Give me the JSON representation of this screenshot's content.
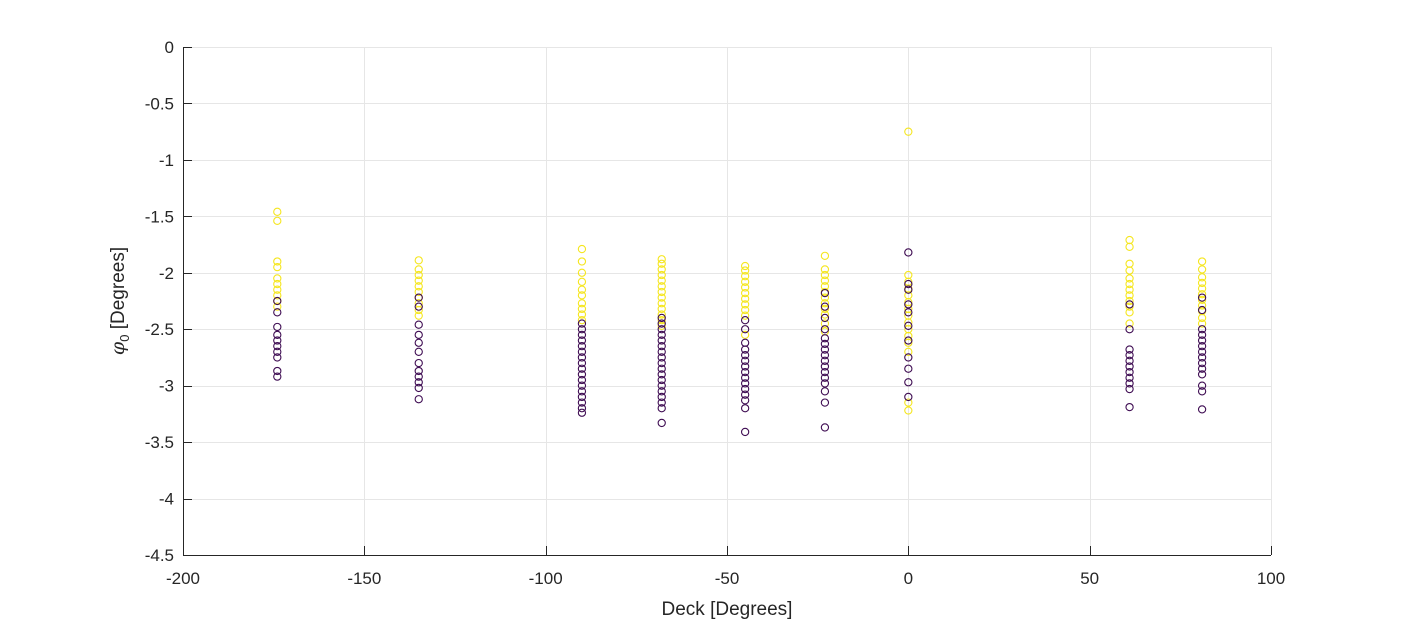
{
  "chart_data": {
    "type": "scatter",
    "xlabel": "Deck [Degrees]",
    "ylabel_symbol": "φ",
    "ylabel_subscript": "0",
    "ylabel_rest": " [Degrees]",
    "xlim": [
      -200,
      100
    ],
    "ylim": [
      -4.5,
      0
    ],
    "xticks": [
      -200,
      -150,
      -100,
      -50,
      0,
      50,
      100
    ],
    "yticks": [
      0,
      -0.5,
      -1,
      -1.5,
      -2,
      -2.5,
      -3,
      -3.5,
      -4,
      -4.5
    ],
    "grid": true,
    "colors": {
      "yellow": "#f5e61f",
      "purple": "#3f0d53"
    },
    "series": [
      {
        "color_key": "yellow",
        "points": [
          [
            -174,
            -1.46
          ],
          [
            -174,
            -1.54
          ],
          [
            -174,
            -1.9
          ],
          [
            -174,
            -1.95
          ],
          [
            -174,
            -2.05
          ],
          [
            -174,
            -2.1
          ],
          [
            -174,
            -2.15
          ],
          [
            -174,
            -2.2
          ],
          [
            -174,
            -2.25
          ],
          [
            -174,
            -2.3
          ],
          [
            -135,
            -1.89
          ],
          [
            -135,
            -1.97
          ],
          [
            -135,
            -2.02
          ],
          [
            -135,
            -2.07
          ],
          [
            -135,
            -2.12
          ],
          [
            -135,
            -2.17
          ],
          [
            -135,
            -2.22
          ],
          [
            -135,
            -2.27
          ],
          [
            -135,
            -2.33
          ],
          [
            -135,
            -2.38
          ],
          [
            -90,
            -1.79
          ],
          [
            -90,
            -1.9
          ],
          [
            -90,
            -2.0
          ],
          [
            -90,
            -2.08
          ],
          [
            -90,
            -2.15
          ],
          [
            -90,
            -2.2
          ],
          [
            -90,
            -2.27
          ],
          [
            -90,
            -2.32
          ],
          [
            -90,
            -2.37
          ],
          [
            -90,
            -2.42
          ],
          [
            -68,
            -1.88
          ],
          [
            -68,
            -1.92
          ],
          [
            -68,
            -1.97
          ],
          [
            -68,
            -2.02
          ],
          [
            -68,
            -2.07
          ],
          [
            -68,
            -2.12
          ],
          [
            -68,
            -2.17
          ],
          [
            -68,
            -2.22
          ],
          [
            -68,
            -2.27
          ],
          [
            -68,
            -2.32
          ],
          [
            -68,
            -2.37
          ],
          [
            -68,
            -2.42
          ],
          [
            -68,
            -2.47
          ],
          [
            -45,
            -1.94
          ],
          [
            -45,
            -1.98
          ],
          [
            -45,
            -2.03
          ],
          [
            -45,
            -2.08
          ],
          [
            -45,
            -2.13
          ],
          [
            -45,
            -2.18
          ],
          [
            -45,
            -2.23
          ],
          [
            -45,
            -2.28
          ],
          [
            -45,
            -2.33
          ],
          [
            -45,
            -2.38
          ],
          [
            -45,
            -2.55
          ],
          [
            -23,
            -1.85
          ],
          [
            -23,
            -1.97
          ],
          [
            -23,
            -2.02
          ],
          [
            -23,
            -2.07
          ],
          [
            -23,
            -2.12
          ],
          [
            -23,
            -2.17
          ],
          [
            -23,
            -2.22
          ],
          [
            -23,
            -2.27
          ],
          [
            -23,
            -2.32
          ],
          [
            -23,
            -2.37
          ],
          [
            -23,
            -2.45
          ],
          [
            -23,
            -2.52
          ],
          [
            0,
            -0.75
          ],
          [
            0,
            -2.02
          ],
          [
            0,
            -2.08
          ],
          [
            0,
            -2.14
          ],
          [
            0,
            -2.2
          ],
          [
            0,
            -2.26
          ],
          [
            0,
            -2.32
          ],
          [
            0,
            -2.38
          ],
          [
            0,
            -2.44
          ],
          [
            0,
            -2.5
          ],
          [
            0,
            -2.56
          ],
          [
            0,
            -2.62
          ],
          [
            0,
            -2.7
          ],
          [
            0,
            -3.15
          ],
          [
            0,
            -3.22
          ],
          [
            61,
            -1.71
          ],
          [
            61,
            -1.77
          ],
          [
            61,
            -1.92
          ],
          [
            61,
            -1.98
          ],
          [
            61,
            -2.05
          ],
          [
            61,
            -2.1
          ],
          [
            61,
            -2.15
          ],
          [
            61,
            -2.2
          ],
          [
            61,
            -2.25
          ],
          [
            61,
            -2.3
          ],
          [
            61,
            -2.35
          ],
          [
            61,
            -2.45
          ],
          [
            81,
            -1.9
          ],
          [
            81,
            -1.97
          ],
          [
            81,
            -2.04
          ],
          [
            81,
            -2.09
          ],
          [
            81,
            -2.14
          ],
          [
            81,
            -2.19
          ],
          [
            81,
            -2.24
          ],
          [
            81,
            -2.29
          ],
          [
            81,
            -2.34
          ],
          [
            81,
            -2.4
          ],
          [
            81,
            -2.45
          ]
        ]
      },
      {
        "color_key": "purple",
        "points": [
          [
            -174,
            -2.25
          ],
          [
            -174,
            -2.35
          ],
          [
            -174,
            -2.48
          ],
          [
            -174,
            -2.55
          ],
          [
            -174,
            -2.6
          ],
          [
            -174,
            -2.65
          ],
          [
            -174,
            -2.7
          ],
          [
            -174,
            -2.75
          ],
          [
            -174,
            -2.87
          ],
          [
            -174,
            -2.92
          ],
          [
            -135,
            -2.22
          ],
          [
            -135,
            -2.3
          ],
          [
            -135,
            -2.46
          ],
          [
            -135,
            -2.55
          ],
          [
            -135,
            -2.62
          ],
          [
            -135,
            -2.7
          ],
          [
            -135,
            -2.8
          ],
          [
            -135,
            -2.87
          ],
          [
            -135,
            -2.92
          ],
          [
            -135,
            -2.97
          ],
          [
            -135,
            -3.02
          ],
          [
            -135,
            -3.12
          ],
          [
            -90,
            -2.45
          ],
          [
            -90,
            -2.5
          ],
          [
            -90,
            -2.55
          ],
          [
            -90,
            -2.6
          ],
          [
            -90,
            -2.65
          ],
          [
            -90,
            -2.7
          ],
          [
            -90,
            -2.75
          ],
          [
            -90,
            -2.8
          ],
          [
            -90,
            -2.85
          ],
          [
            -90,
            -2.9
          ],
          [
            -90,
            -2.95
          ],
          [
            -90,
            -3.0
          ],
          [
            -90,
            -3.05
          ],
          [
            -90,
            -3.1
          ],
          [
            -90,
            -3.15
          ],
          [
            -90,
            -3.2
          ],
          [
            -90,
            -3.24
          ],
          [
            -68,
            -2.4
          ],
          [
            -68,
            -2.45
          ],
          [
            -68,
            -2.5
          ],
          [
            -68,
            -2.55
          ],
          [
            -68,
            -2.6
          ],
          [
            -68,
            -2.65
          ],
          [
            -68,
            -2.7
          ],
          [
            -68,
            -2.75
          ],
          [
            -68,
            -2.8
          ],
          [
            -68,
            -2.85
          ],
          [
            -68,
            -2.9
          ],
          [
            -68,
            -2.95
          ],
          [
            -68,
            -3.0
          ],
          [
            -68,
            -3.05
          ],
          [
            -68,
            -3.1
          ],
          [
            -68,
            -3.15
          ],
          [
            -68,
            -3.2
          ],
          [
            -68,
            -3.33
          ],
          [
            -45,
            -2.42
          ],
          [
            -45,
            -2.5
          ],
          [
            -45,
            -2.62
          ],
          [
            -45,
            -2.68
          ],
          [
            -45,
            -2.73
          ],
          [
            -45,
            -2.78
          ],
          [
            -45,
            -2.83
          ],
          [
            -45,
            -2.88
          ],
          [
            -45,
            -2.93
          ],
          [
            -45,
            -2.98
          ],
          [
            -45,
            -3.03
          ],
          [
            -45,
            -3.08
          ],
          [
            -45,
            -3.13
          ],
          [
            -45,
            -3.2
          ],
          [
            -45,
            -3.41
          ],
          [
            -23,
            -2.18
          ],
          [
            -23,
            -2.3
          ],
          [
            -23,
            -2.4
          ],
          [
            -23,
            -2.5
          ],
          [
            -23,
            -2.58
          ],
          [
            -23,
            -2.63
          ],
          [
            -23,
            -2.68
          ],
          [
            -23,
            -2.73
          ],
          [
            -23,
            -2.78
          ],
          [
            -23,
            -2.83
          ],
          [
            -23,
            -2.88
          ],
          [
            -23,
            -2.93
          ],
          [
            -23,
            -2.98
          ],
          [
            -23,
            -3.05
          ],
          [
            -23,
            -3.15
          ],
          [
            -23,
            -3.37
          ],
          [
            0,
            -1.82
          ],
          [
            0,
            -2.1
          ],
          [
            0,
            -2.15
          ],
          [
            0,
            -2.28
          ],
          [
            0,
            -2.35
          ],
          [
            0,
            -2.47
          ],
          [
            0,
            -2.6
          ],
          [
            0,
            -2.75
          ],
          [
            0,
            -2.85
          ],
          [
            0,
            -2.97
          ],
          [
            0,
            -3.1
          ],
          [
            61,
            -2.28
          ],
          [
            61,
            -2.5
          ],
          [
            61,
            -2.68
          ],
          [
            61,
            -2.73
          ],
          [
            61,
            -2.78
          ],
          [
            61,
            -2.83
          ],
          [
            61,
            -2.88
          ],
          [
            61,
            -2.93
          ],
          [
            61,
            -2.98
          ],
          [
            61,
            -3.03
          ],
          [
            61,
            -3.19
          ],
          [
            81,
            -2.22
          ],
          [
            81,
            -2.33
          ],
          [
            81,
            -2.5
          ],
          [
            81,
            -2.55
          ],
          [
            81,
            -2.6
          ],
          [
            81,
            -2.65
          ],
          [
            81,
            -2.7
          ],
          [
            81,
            -2.75
          ],
          [
            81,
            -2.8
          ],
          [
            81,
            -2.85
          ],
          [
            81,
            -2.9
          ],
          [
            81,
            -3.0
          ],
          [
            81,
            -3.05
          ],
          [
            81,
            -3.21
          ]
        ]
      }
    ]
  }
}
